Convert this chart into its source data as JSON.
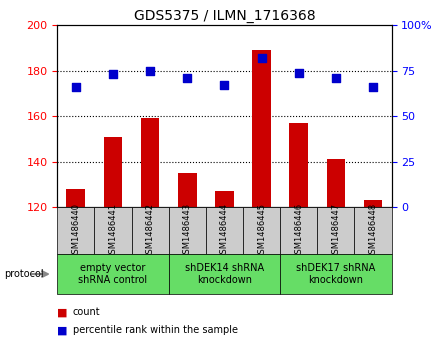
{
  "title": "GDS5375 / ILMN_1716368",
  "samples": [
    "GSM1486440",
    "GSM1486441",
    "GSM1486442",
    "GSM1486443",
    "GSM1486444",
    "GSM1486445",
    "GSM1486446",
    "GSM1486447",
    "GSM1486448"
  ],
  "counts": [
    128,
    151,
    159,
    135,
    127,
    189,
    157,
    141,
    123
  ],
  "percentiles": [
    66,
    73,
    75,
    71,
    67,
    82,
    74,
    71,
    66
  ],
  "ylim_left": [
    120,
    200
  ],
  "ylim_right": [
    0,
    100
  ],
  "yticks_left": [
    120,
    140,
    160,
    180,
    200
  ],
  "yticks_right": [
    0,
    25,
    50,
    75,
    100
  ],
  "bar_color": "#cc0000",
  "dot_color": "#0000cc",
  "groups": [
    {
      "label": "empty vector\nshRNA control",
      "start": 0,
      "end": 3
    },
    {
      "label": "shDEK14 shRNA\nknockdown",
      "start": 3,
      "end": 6
    },
    {
      "label": "shDEK17 shRNA\nknockdown",
      "start": 6,
      "end": 9
    }
  ],
  "protocol_label": "protocol",
  "legend_count_label": "count",
  "legend_percentile_label": "percentile rank within the sample",
  "bg_color": "#ffffff",
  "sample_box_color": "#cccccc",
  "group_box_color": "#66dd66",
  "bar_width": 0.5,
  "dot_size": 30,
  "title_fontsize": 10,
  "tick_fontsize": 8,
  "sample_fontsize": 6,
  "group_fontsize": 7,
  "legend_fontsize": 7
}
